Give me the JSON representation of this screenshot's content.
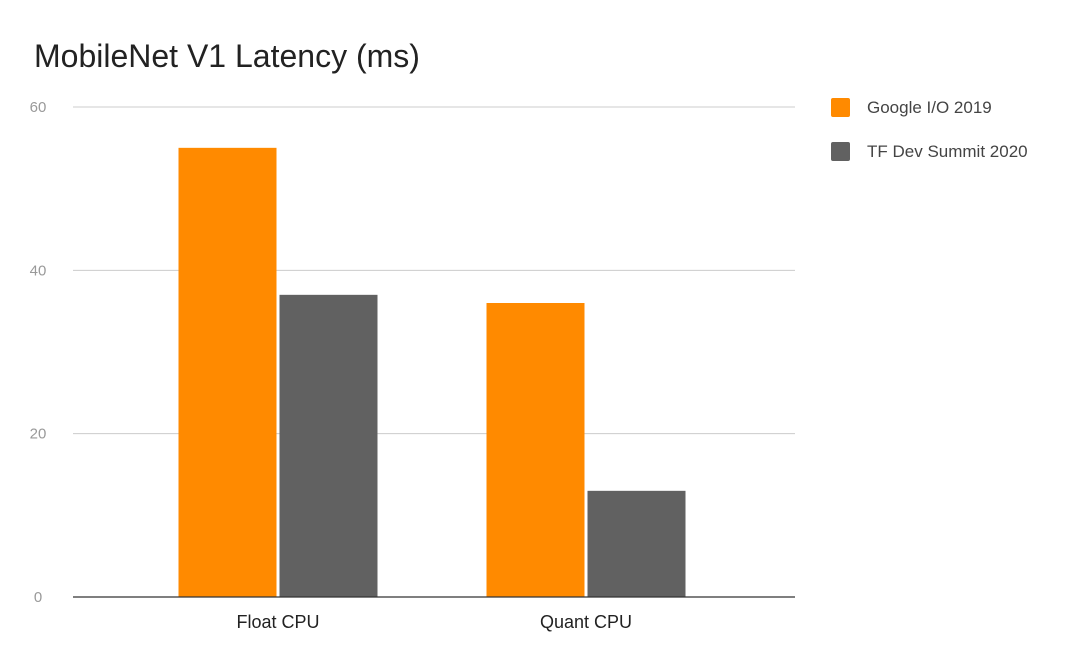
{
  "chart_data": {
    "type": "bar",
    "title": "MobileNet V1 Latency (ms)",
    "xlabel": "",
    "ylabel": "",
    "categories": [
      "Float CPU",
      "Quant CPU"
    ],
    "series": [
      {
        "name": "Google I/O 2019",
        "values": [
          55,
          36
        ],
        "color": "#ff8a00"
      },
      {
        "name": "TF Dev Summit 2020",
        "values": [
          37,
          13
        ],
        "color": "#616161"
      }
    ],
    "ylim": [
      0,
      60
    ],
    "yticks": [
      0,
      20,
      40,
      60
    ],
    "grid": true,
    "legend": "right"
  }
}
